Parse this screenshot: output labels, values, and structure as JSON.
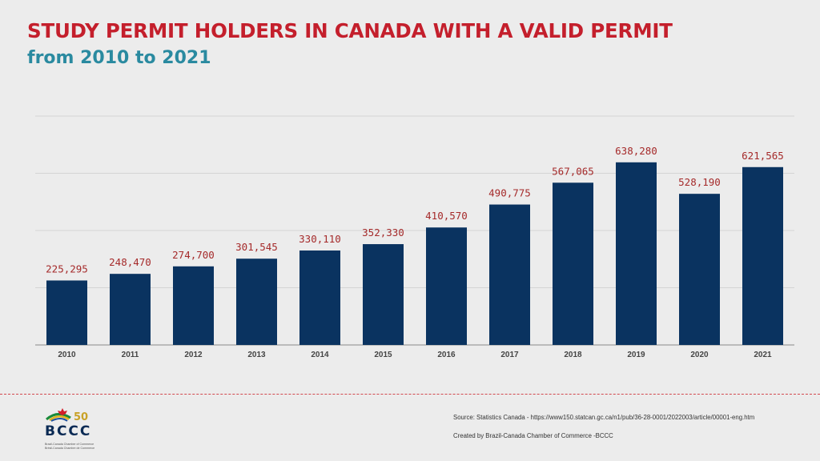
{
  "title": "STUDY PERMIT HOLDERS IN CANADA WITH A VALID PERMIT",
  "subtitle": "from 2010 to 2021",
  "chart_data": {
    "type": "bar",
    "categories": [
      "2010",
      "2011",
      "2012",
      "2013",
      "2014",
      "2015",
      "2016",
      "2017",
      "2018",
      "2019",
      "2020",
      "2021"
    ],
    "values": [
      225295,
      248470,
      274700,
      301545,
      330110,
      352330,
      410570,
      490775,
      567065,
      638280,
      528190,
      621565
    ],
    "data_labels": [
      "225,295",
      "248,470",
      "274,700",
      "301,545",
      "330,110",
      "352,330",
      "410,570",
      "490,775",
      "567,065",
      "638,280",
      "528,190",
      "621,565"
    ],
    "ylim": [
      0,
      800000
    ],
    "grid": true,
    "bar_color": "#0a3360",
    "label_color": "#a52a2a"
  },
  "footer": {
    "source": "Source: Statistics Canada - https://www150.statcan.gc.ca/n1/pub/36-28-0001/2022003/article/00001-eng.htm",
    "credit": "Created by Brazil-Canada Chamber of Commerce -BCCC"
  },
  "logo": {
    "number": "50",
    "text": "BCCC",
    "line1": "Brazil-Canada Chamber of Commerce",
    "line2": "Brésil-Canada Chambre de Commerce"
  }
}
